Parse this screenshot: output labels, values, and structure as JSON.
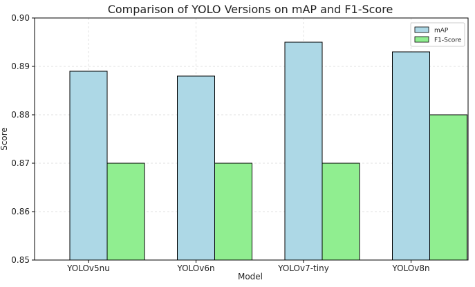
{
  "chart_data": {
    "type": "bar",
    "title": "Comparison of YOLO Versions on mAP and F1-Score",
    "xlabel": "Model",
    "ylabel": "Score",
    "categories": [
      "YOLOv5nu",
      "YOLOv6n",
      "YOLOv7-tiny",
      "YOLOv8n"
    ],
    "series": [
      {
        "name": "mAP",
        "values": [
          0.889,
          0.888,
          0.895,
          0.893
        ],
        "color": "#add8e6"
      },
      {
        "name": "F1-Score",
        "values": [
          0.87,
          0.87,
          0.87,
          0.88
        ],
        "color": "#90ee90"
      }
    ],
    "ylim": [
      0.85,
      0.9
    ],
    "yticks": [
      "0.85",
      "0.86",
      "0.87",
      "0.88",
      "0.89",
      "0.90"
    ],
    "grid": true,
    "legend_position": "top-right"
  }
}
